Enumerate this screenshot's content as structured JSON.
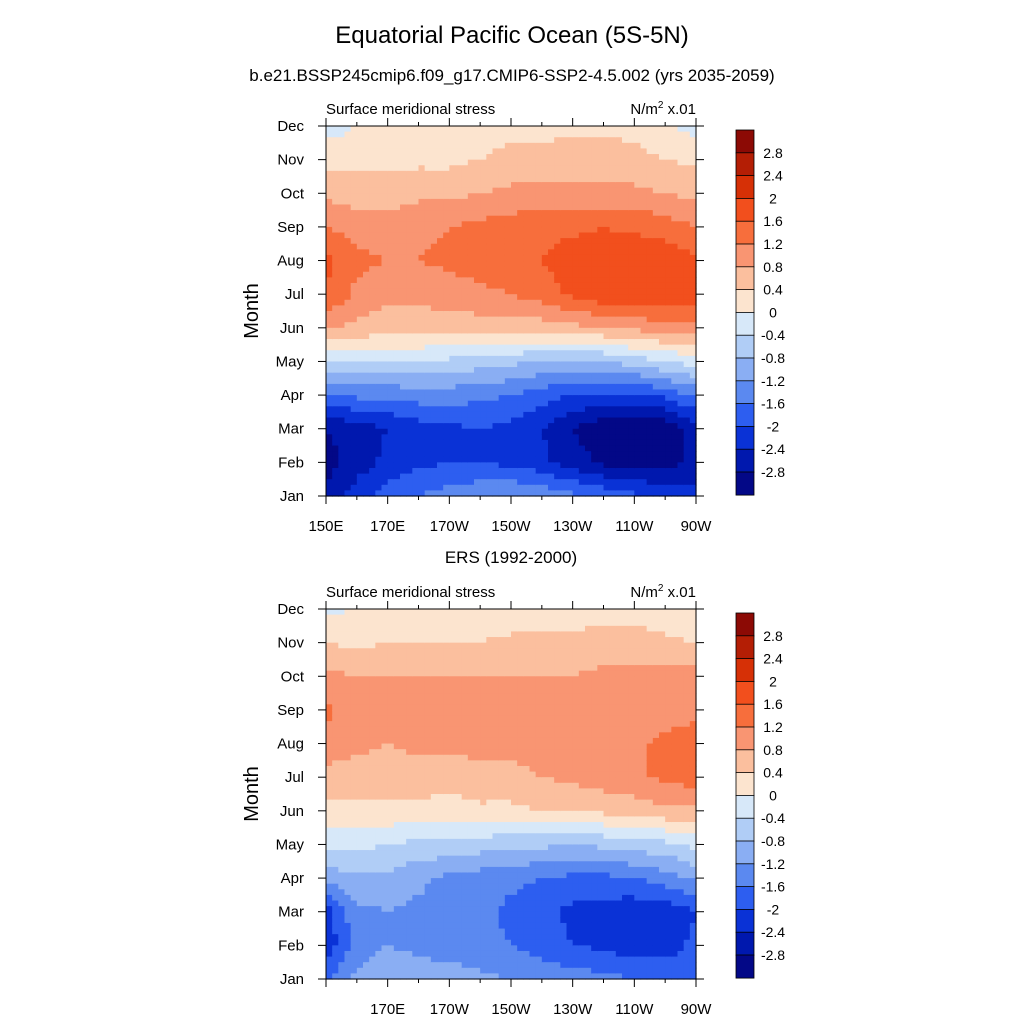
{
  "figure": {
    "title": "Equatorial Pacific Ocean (5S-5N)"
  },
  "chart_data": [
    {
      "type": "heatmap",
      "title": "b.e21.BSSP245cmip6.f09_g17.CMIP6-SSP2-4.5.002 (yrs 2035-2059)",
      "left_label": "Surface meridional stress",
      "units_base": "N/m",
      "units_sup": "2",
      "units_tail": " x.01",
      "ylabel": "Month",
      "y_ticks": [
        "Jan",
        "Feb",
        "Mar",
        "Apr",
        "May",
        "Jun",
        "Jul",
        "Aug",
        "Sep",
        "Oct",
        "Nov",
        "Dec"
      ],
      "x_ticks": [
        "150E",
        "170E",
        "170W",
        "150W",
        "130W",
        "110W",
        "90W"
      ],
      "x_range": [
        150,
        270
      ],
      "colorbar": {
        "levels": [
          "2.8",
          "2.4",
          "2",
          "1.6",
          "1.2",
          "0.8",
          "0.4",
          "0",
          "-0.4",
          "-0.8",
          "-1.2",
          "-1.6",
          "-2",
          "-2.4",
          "-2.8"
        ],
        "colors": [
          "#8c0a05",
          "#b41e05",
          "#d63006",
          "#f24f1d",
          "#f76e3c",
          "#f99572",
          "#fbbf9e",
          "#fce4cf",
          "#d7e8f9",
          "#b0cdf6",
          "#8aaef3",
          "#5b89f0",
          "#2d5ef0",
          "#0a32d6",
          "#0018ae",
          "#030887"
        ]
      },
      "grid": {
        "lon": [
          150,
          160,
          170,
          180,
          190,
          200,
          210,
          220,
          230,
          240,
          250,
          260,
          270
        ],
        "values": [
          [
            -2.7,
            -2.2,
            -1.8,
            -1.6,
            -1.4,
            -1.3,
            -1.2,
            -1.3,
            -1.5,
            -1.7,
            -1.9,
            -2.1,
            -2.3
          ],
          [
            -3.0,
            -2.6,
            -2.3,
            -2.1,
            -2.0,
            -2.0,
            -2.1,
            -2.3,
            -2.6,
            -2.9,
            -3.0,
            -3.0,
            -2.7
          ],
          [
            -2.8,
            -2.6,
            -2.4,
            -2.2,
            -2.1,
            -2.0,
            -2.1,
            -2.4,
            -2.8,
            -3.1,
            -3.2,
            -3.1,
            -2.6
          ],
          [
            -1.6,
            -1.5,
            -1.5,
            -1.4,
            -1.4,
            -1.5,
            -1.6,
            -1.8,
            -2.0,
            -2.1,
            -2.1,
            -1.9,
            -1.5
          ],
          [
            -0.3,
            -0.3,
            -0.4,
            -0.4,
            -0.5,
            -0.6,
            -0.7,
            -0.8,
            -0.9,
            -0.8,
            -0.6,
            -0.4,
            -0.2
          ],
          [
            0.8,
            0.7,
            0.6,
            0.6,
            0.6,
            0.6,
            0.6,
            0.6,
            0.7,
            0.8,
            0.9,
            1.0,
            1.0
          ],
          [
            1.6,
            1.1,
            0.9,
            0.9,
            1.0,
            1.1,
            1.2,
            1.4,
            1.7,
            1.9,
            2.0,
            2.0,
            1.8
          ],
          [
            1.7,
            1.3,
            1.2,
            1.2,
            1.3,
            1.4,
            1.5,
            1.6,
            1.8,
            1.9,
            2.0,
            1.9,
            1.7
          ],
          [
            1.2,
            1.0,
            1.0,
            1.1,
            1.2,
            1.3,
            1.4,
            1.5,
            1.5,
            1.6,
            1.5,
            1.4,
            1.2
          ],
          [
            0.7,
            0.6,
            0.6,
            0.7,
            0.7,
            0.8,
            0.9,
            0.9,
            0.9,
            0.9,
            0.9,
            0.8,
            0.7
          ],
          [
            0.3,
            0.3,
            0.3,
            0.3,
            0.3,
            0.4,
            0.5,
            0.5,
            0.6,
            0.6,
            0.5,
            0.4,
            0.3
          ],
          [
            -0.2,
            0.0,
            0.2,
            0.2,
            0.2,
            0.2,
            0.3,
            0.3,
            0.3,
            0.3,
            0.3,
            0.1,
            -0.2
          ]
        ]
      }
    },
    {
      "type": "heatmap",
      "title": "ERS (1992-2000)",
      "left_label": "Surface meridional stress",
      "units_base": "N/m",
      "units_sup": "2",
      "units_tail": " x.01",
      "ylabel": "Month",
      "y_ticks": [
        "Jan",
        "Feb",
        "Mar",
        "Apr",
        "May",
        "Jun",
        "Jul",
        "Aug",
        "Sep",
        "Oct",
        "Nov",
        "Dec"
      ],
      "x_ticks": [
        "170E",
        "170W",
        "150W",
        "130W",
        "110W",
        "90W"
      ],
      "x_range": [
        150,
        270
      ],
      "colorbar": {
        "levels": [
          "2.8",
          "2.4",
          "2",
          "1.6",
          "1.2",
          "0.8",
          "0.4",
          "0",
          "-0.4",
          "-0.8",
          "-1.2",
          "-1.6",
          "-2",
          "-2.4",
          "-2.8"
        ],
        "colors": [
          "#8c0a05",
          "#b41e05",
          "#d63006",
          "#f24f1d",
          "#f76e3c",
          "#f99572",
          "#fbbf9e",
          "#fce4cf",
          "#d7e8f9",
          "#b0cdf6",
          "#8aaef3",
          "#5b89f0",
          "#2d5ef0",
          "#0a32d6",
          "#0018ae",
          "#030887"
        ]
      },
      "grid": {
        "lon": [
          150,
          160,
          170,
          180,
          190,
          200,
          210,
          220,
          230,
          240,
          250,
          260,
          270
        ],
        "values": [
          [
            -1.7,
            -1.1,
            -0.9,
            -1.0,
            -1.0,
            -1.1,
            -1.2,
            -1.3,
            -1.4,
            -1.5,
            -1.6,
            -1.7,
            -1.7
          ],
          [
            -2.3,
            -1.4,
            -1.2,
            -1.3,
            -1.4,
            -1.5,
            -1.6,
            -1.8,
            -2.0,
            -2.1,
            -2.2,
            -2.2,
            -1.9
          ],
          [
            -2.2,
            -1.3,
            -1.2,
            -1.3,
            -1.4,
            -1.5,
            -1.7,
            -1.9,
            -2.1,
            -2.2,
            -2.3,
            -2.3,
            -2.0
          ],
          [
            -1.0,
            -0.9,
            -0.9,
            -1.1,
            -1.3,
            -1.4,
            -1.5,
            -1.6,
            -1.7,
            -1.7,
            -1.6,
            -1.4,
            -1.1
          ],
          [
            -0.3,
            -0.3,
            -0.4,
            -0.5,
            -0.5,
            -0.6,
            -0.7,
            -0.7,
            -0.8,
            -0.7,
            -0.6,
            -0.5,
            -0.3
          ],
          [
            0.3,
            0.3,
            0.3,
            0.3,
            0.2,
            0.3,
            0.3,
            0.4,
            0.4,
            0.5,
            0.6,
            0.7,
            0.7
          ],
          [
            0.7,
            0.6,
            0.6,
            0.6,
            0.6,
            0.7,
            0.7,
            0.8,
            0.9,
            1.0,
            1.1,
            1.3,
            1.4
          ],
          [
            1.0,
            0.9,
            0.8,
            0.9,
            0.9,
            0.9,
            0.9,
            1.0,
            1.0,
            1.0,
            1.1,
            1.3,
            1.4
          ],
          [
            1.3,
            1.0,
            0.9,
            0.9,
            0.9,
            0.9,
            0.9,
            0.9,
            0.9,
            0.9,
            0.9,
            1.0,
            1.1
          ],
          [
            0.9,
            0.8,
            0.8,
            0.8,
            0.8,
            0.8,
            0.8,
            0.8,
            0.8,
            0.9,
            0.9,
            0.9,
            1.0
          ],
          [
            0.4,
            0.3,
            0.4,
            0.4,
            0.4,
            0.4,
            0.5,
            0.5,
            0.5,
            0.6,
            0.6,
            0.5,
            0.4
          ],
          [
            -0.1,
            0.0,
            0.1,
            0.1,
            0.1,
            0.1,
            0.1,
            0.2,
            0.2,
            0.2,
            0.2,
            0.1,
            0.0
          ]
        ]
      }
    }
  ]
}
